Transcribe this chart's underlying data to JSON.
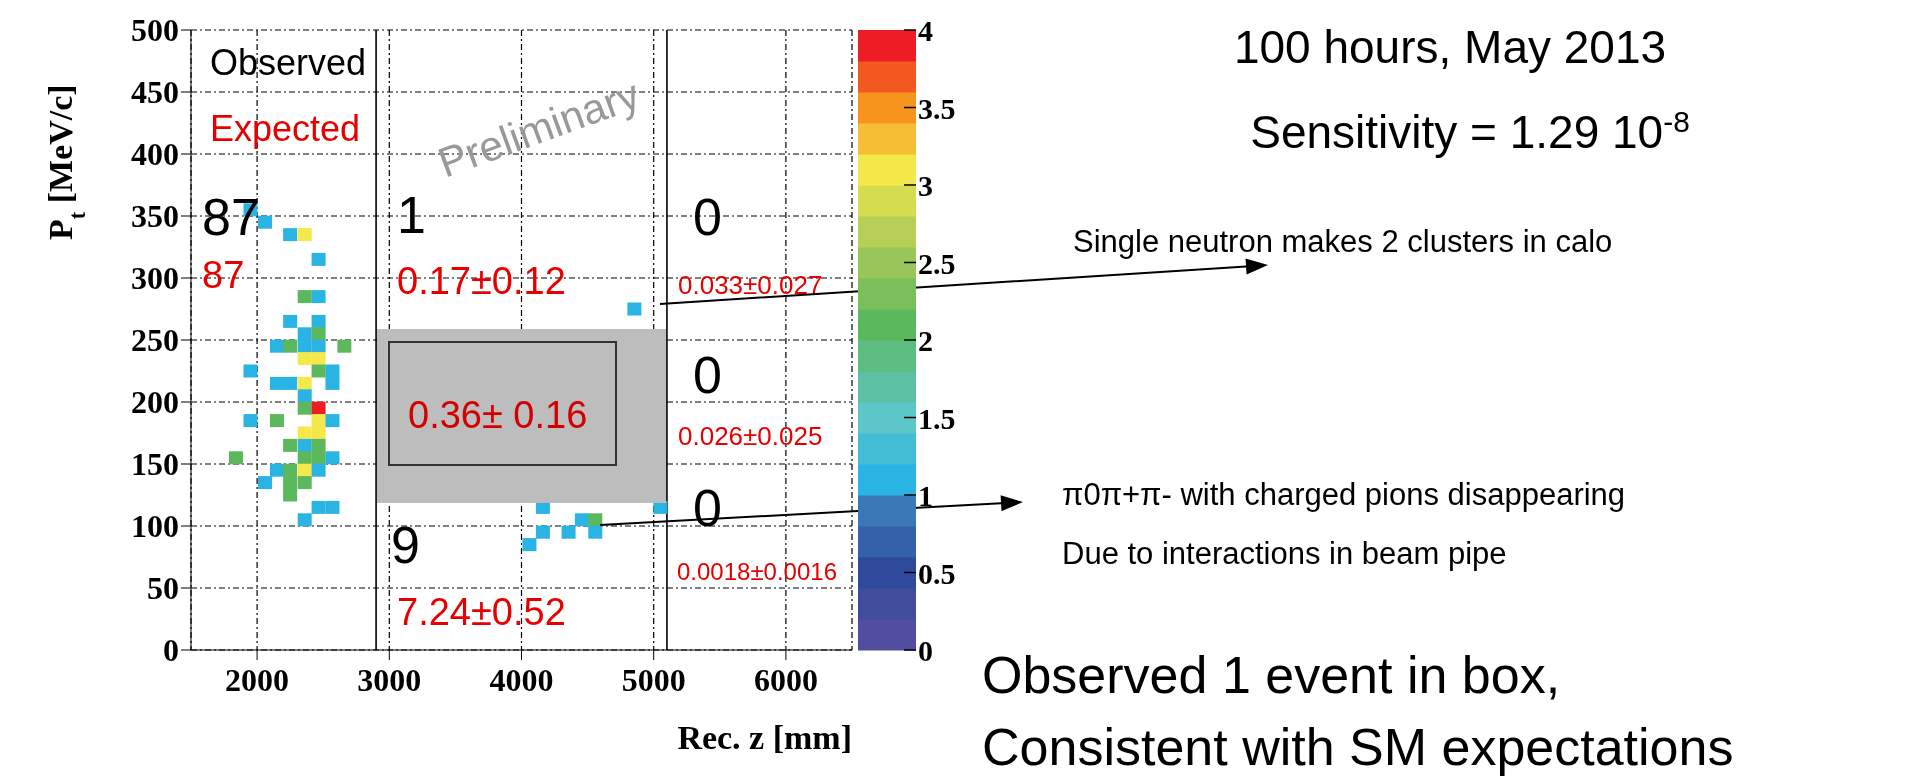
{
  "chart_data": {
    "type": "scatter",
    "title": "100 hours, May 2013",
    "subtitle": "Sensitivity = 1.29 10$^{-8}$",
    "xlabel": "Rec. z [mm]",
    "ylabel": "P$_{t}$ [MeV/c]",
    "x": [
      1950,
      2060,
      2250,
      2360,
      2465,
      2360,
      2465,
      2250,
      2465,
      2360,
      2465,
      2150,
      2250,
      2360,
      2465,
      2660,
      2360,
      2465,
      1950,
      2465,
      2570,
      2150,
      2250,
      2360,
      2570,
      2360,
      2360,
      2465,
      1950,
      2150,
      2465,
      2570,
      2360,
      2465,
      2250,
      2360,
      2465,
      1840,
      2360,
      2465,
      2570,
      2150,
      2250,
      2360,
      2465,
      2060,
      2250,
      2360,
      2250,
      2465,
      2570,
      2360,
      4854,
      4162,
      5050,
      4457,
      4558,
      4162,
      4356,
      4558,
      4060
    ],
    "values": [
      355,
      345,
      335,
      335,
      315,
      285,
      285,
      265,
      265,
      255,
      255,
      245,
      245,
      245,
      245,
      245,
      235,
      235,
      225,
      225,
      225,
      215,
      215,
      215,
      215,
      205,
      195,
      195,
      185,
      185,
      185,
      185,
      175,
      175,
      165,
      165,
      165,
      155,
      155,
      155,
      155,
      145,
      145,
      145,
      145,
      135,
      135,
      135,
      125,
      115,
      115,
      105,
      275,
      115,
      115,
      105,
      105,
      95,
      95,
      95,
      85
    ],
    "cvalues": [
      1,
      1,
      1,
      3,
      1,
      2,
      1,
      1,
      1,
      1,
      2,
      1,
      2,
      1,
      1,
      2,
      3,
      3,
      1,
      2,
      1,
      1,
      1,
      3,
      1,
      1,
      2,
      4,
      1,
      2,
      3,
      1,
      3,
      3,
      2,
      1,
      2,
      2,
      2,
      2,
      1,
      1,
      2,
      3,
      1,
      1,
      2,
      2,
      2,
      1,
      1,
      1,
      1,
      1,
      1,
      1,
      2,
      1,
      1,
      1,
      1
    ],
    "clim": [
      0,
      4
    ],
    "cticks": [
      0,
      0.5,
      1,
      1.5,
      2,
      2.5,
      3,
      3.5,
      4
    ],
    "xlim": [
      1500,
      6500
    ],
    "xticks": [
      2000,
      3000,
      4000,
      5000,
      6000
    ],
    "ylim": [
      0,
      500
    ],
    "yticks": [
      0,
      50,
      100,
      150,
      200,
      250,
      300,
      350,
      400,
      450,
      500
    ],
    "grid": true,
    "marker": "square",
    "ref_lines": [
      {
        "axis": "x",
        "value": 2900,
        "color": "#000000"
      },
      {
        "axis": "x",
        "value": 5100,
        "color": "#000000"
      }
    ],
    "annotations": [
      "Observed",
      "Expected",
      "Preliminary",
      "87",
      "87",
      "1",
      "0.17±0.12",
      "0",
      "0.033±0.027",
      "0",
      "0.026±0.025",
      "0",
      "0.0018±0.0016",
      "9",
      "7.24±0.52",
      "0.36± 0.16",
      "Single neutron makes 2 clusters in calo",
      "π0π+π- with charged pions disappearing\nDue to interactions in beam pipe",
      "Observed 1 event in box,\nConsistent with SM expectations"
    ]
  }
}
